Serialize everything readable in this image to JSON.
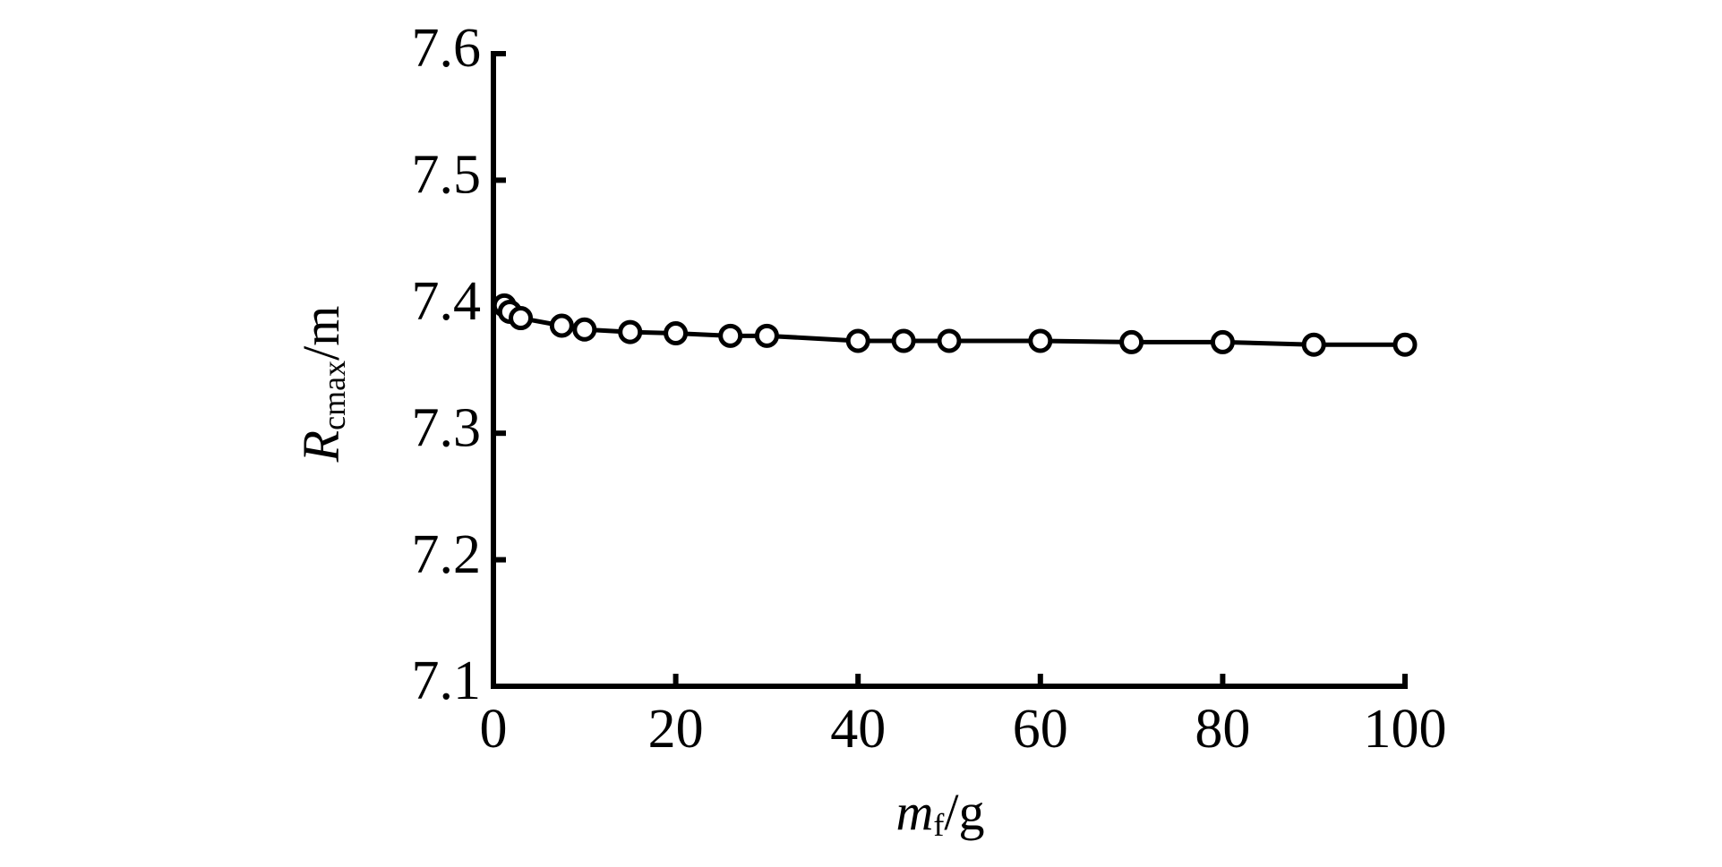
{
  "chart_data": {
    "type": "line",
    "xlabel": [
      "m",
      "f",
      "/g"
    ],
    "ylabel": [
      "R",
      "cmax",
      "/m"
    ],
    "x": [
      1.2,
      1.8,
      3,
      7.5,
      10,
      15,
      20,
      26,
      30,
      40,
      45,
      50,
      60,
      70,
      80,
      90,
      100
    ],
    "values": [
      7.401,
      7.396,
      7.391,
      7.385,
      7.382,
      7.38,
      7.379,
      7.377,
      7.377,
      7.373,
      7.373,
      7.373,
      7.373,
      7.372,
      7.372,
      7.37,
      7.37
    ],
    "color": "#000000",
    "xlim": [
      0,
      100
    ],
    "xticks": [
      0,
      20,
      40,
      60,
      80,
      100
    ],
    "ylim": [
      7.1,
      7.6
    ],
    "yticks": [
      7.1,
      7.2,
      7.3,
      7.4,
      7.5,
      7.6
    ],
    "grid": false
  }
}
